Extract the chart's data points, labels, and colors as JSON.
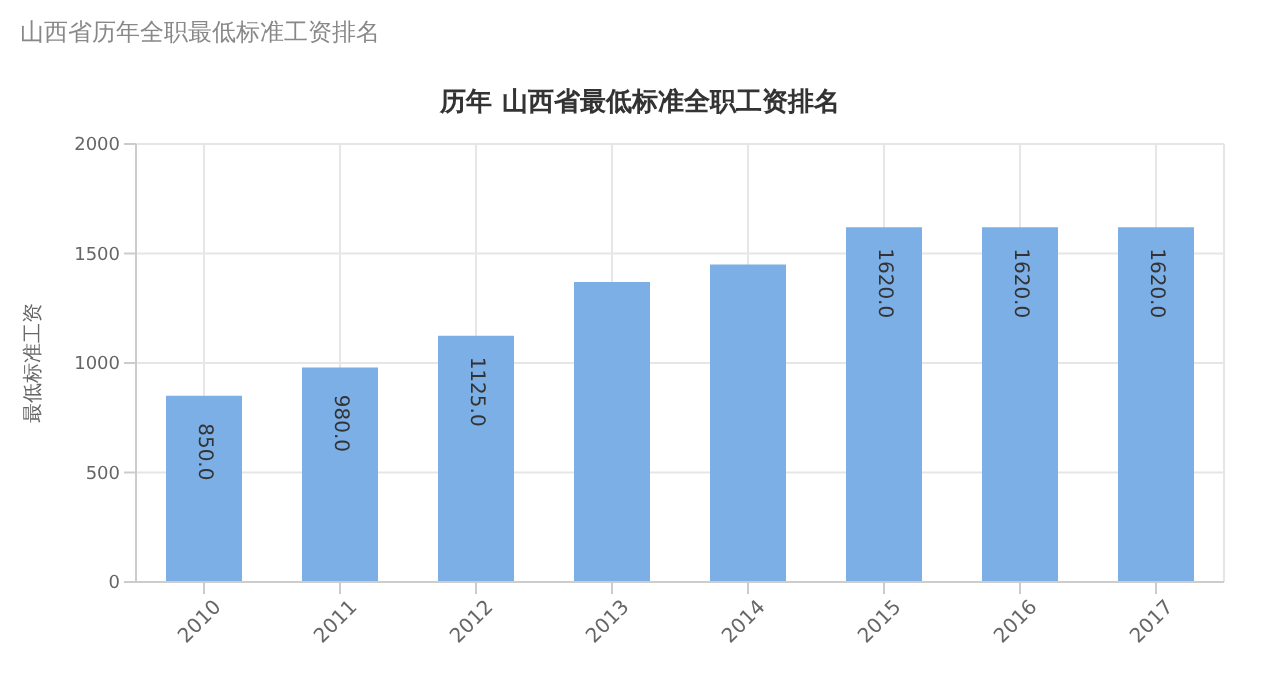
{
  "chart_data": {
    "type": "bar",
    "title": "历年 山西省最低标准全职工资排名",
    "subtitle": "山西省历年全职最低标准工资排名",
    "ylabel": "最低标准工资",
    "categories": [
      "2010",
      "2011",
      "2012",
      "2013",
      "2014",
      "2015",
      "2016",
      "2017"
    ],
    "values": [
      850,
      980,
      1125,
      1370,
      1450,
      1620,
      1620,
      1620
    ],
    "value_labels": [
      "850.0",
      "980.0",
      "1125.0",
      null,
      null,
      "1620.0",
      "1620.0",
      "1620.0"
    ],
    "color": "#7cafe6",
    "ylim": [
      0,
      2000
    ],
    "yticks": [
      0,
      500,
      1000,
      1500,
      2000
    ],
    "grid": true
  }
}
